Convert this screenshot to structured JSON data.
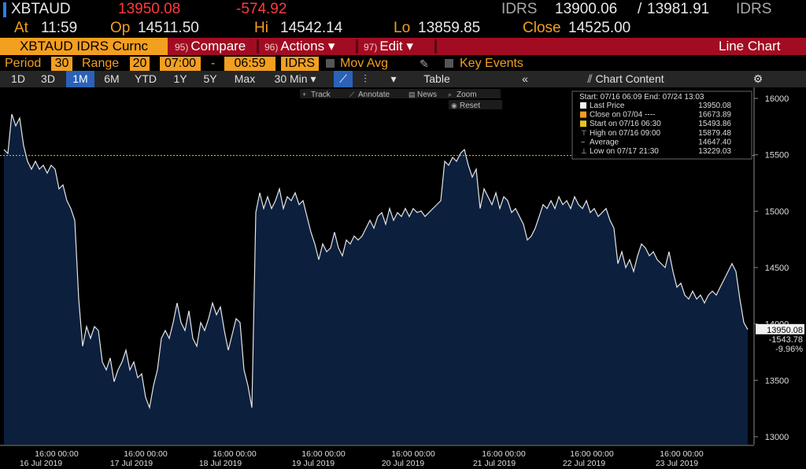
{
  "header": {
    "ticker": "XBTAUD",
    "last": "13950.08",
    "change": "-574.92",
    "currency": "IDRS",
    "bid": "13900.06",
    "separator": "/",
    "ask": "13981.91",
    "currency_2": "IDRS"
  },
  "quote": {
    "at_label": "At",
    "at": "11:59",
    "open_label": "Op",
    "open": "14511.50",
    "high_label": "Hi",
    "high": "14542.14",
    "low_label": "Lo",
    "low": "13859.85",
    "close_label": "Close",
    "close": "14525.00"
  },
  "toolbar": {
    "security": "XBTAUD IDRS Curnc",
    "buttons": [
      {
        "number": "95)",
        "label": "Compare"
      },
      {
        "number": "96)",
        "label": "Actions ▾"
      },
      {
        "number": "97)",
        "label": "Edit ▾"
      }
    ],
    "view": "Line Chart"
  },
  "settings": {
    "period_label": "Period",
    "period": "30",
    "range_label": "Range",
    "range": "20",
    "start_time": "07:00",
    "dash": "-",
    "end_time": "06:59",
    "currency": "IDRS",
    "mov_avg": "Mov Avg",
    "key_events": "Key Events"
  },
  "tabs": {
    "ranges": [
      "1D",
      "3D",
      "1M",
      "6M",
      "YTD",
      "1Y",
      "5Y",
      "Max"
    ],
    "interval": "30 Min ▾",
    "table": "Table",
    "chart_content": "Chart Content"
  },
  "chart_tools": [
    "Track",
    "Annotate",
    "News",
    "Zoom",
    "Reset"
  ],
  "chart_data": {
    "type": "area",
    "color": "#0c1f3d",
    "line_color": "#e6e6e6",
    "legend_header": "Start: 07/16 06:09 End: 07/24 13:03",
    "legend": [
      {
        "label": "Last Price",
        "value": 13950.08
      },
      {
        "label": "Close on 07/04 ----",
        "value": 16673.89
      },
      {
        "label": "Start on 07/16 06:30",
        "value": 15493.86
      },
      {
        "label": "High on 07/16 09:00",
        "value": 15879.48
      },
      {
        "label": "Average",
        "value": {
          "value": 14647.4,
          "label": "14647.40"
        }
      },
      {
        "label": "Low on 07/17 21:30",
        "value": 13229.03
      }
    ],
    "last_label": {
      "price": 13950.08,
      "change": -1543.78,
      "change_pct": "-9.96%"
    },
    "x_ticks": [
      {
        "time": "16:00 00:00",
        "date": "16 Jul 2019"
      },
      {
        "time": "16:00 00:00",
        "date": "17 Jul 2019"
      },
      {
        "time": "16:00 00:00",
        "date": "18 Jul 2019"
      },
      {
        "time": "16:00 00:00",
        "date": "19 Jul 2019"
      },
      {
        "time": "16:00 00:00",
        "date": "20 Jul 2019"
      },
      {
        "time": "16:00 00:00",
        "date": "21 Jul 2019"
      },
      {
        "time": "16:00 00:00",
        "date": "22 Jul 2019"
      },
      {
        "time": "16:00 00:00",
        "date": "23 Jul 2019"
      }
    ],
    "ylim": [
      12930,
      16070
    ],
    "yticks": [
      13000,
      13500,
      14000,
      14500,
      15000,
      15500,
      16000
    ],
    "values": [
      15547,
      15512,
      15860,
      15756,
      15826,
      15581,
      15442,
      15372,
      15442,
      15372,
      15407,
      15337,
      15407,
      15372,
      15198,
      15233,
      15093,
      15023,
      14919,
      14221,
      13802,
      13977,
      13872,
      13977,
      13942,
      13663,
      13593,
      13698,
      13488,
      13593,
      13663,
      13767,
      13593,
      13663,
      13523,
      13558,
      13349,
      13258,
      13453,
      13593,
      13872,
      13942,
      13872,
      14012,
      14186,
      14012,
      13942,
      14116,
      13872,
      13802,
      14012,
      13942,
      14047,
      14186,
      14081,
      14151,
      13942,
      13767,
      13907,
      14047,
      14012,
      13593,
      13453,
      13258,
      14988,
      15163,
      15023,
      15128,
      15023,
      15093,
      15198,
      15023,
      15128,
      15093,
      15163,
      15058,
      15093,
      14953,
      14814,
      14709,
      14570,
      14709,
      14640,
      14674,
      14814,
      14674,
      14605,
      14744,
      14709,
      14779,
      14744,
      14779,
      14849,
      14919,
      14849,
      14953,
      14988,
      14884,
      15023,
      14919,
      14988,
      14953,
      15023,
      14953,
      15023,
      14988,
      15002,
      14953,
      14988,
      15023,
      15058,
      15093,
      15442,
      15407,
      15477,
      15442,
      15512,
      15547,
      15407,
      15302,
      15372,
      15023,
      15198,
      15128,
      15058,
      15163,
      15023,
      15128,
      15093,
      14988,
      15023,
      14953,
      14884,
      14744,
      14779,
      14849,
      14953,
      15058,
      15023,
      15093,
      15023,
      15128,
      15058,
      15093,
      15023,
      15128,
      15058,
      15023,
      15093,
      14988,
      15023,
      14953,
      14988,
      15023,
      14919,
      14849,
      14535,
      14640,
      14500,
      14570,
      14465,
      14605,
      14709,
      14674,
      14605,
      14640,
      14570,
      14535,
      14500,
      14640,
      14465,
      14326,
      14361,
      14256,
      14221,
      14291,
      14221,
      14256,
      14186,
      14256,
      14291,
      14256,
      14326,
      14395,
      14465,
      14535,
      14465,
      14221,
      14012,
      13950.08
    ]
  }
}
